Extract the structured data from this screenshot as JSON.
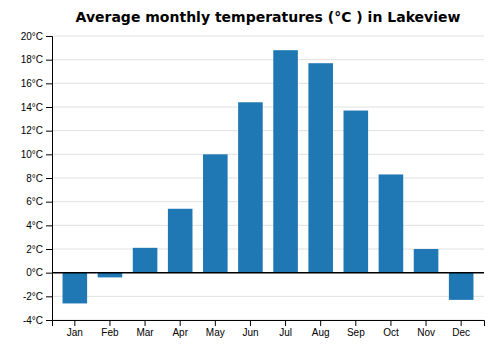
{
  "chart_data": {
    "type": "bar",
    "title": "Average monthly temperatures (°C ) in Lakeview",
    "categories": [
      "Jan",
      "Feb",
      "Mar",
      "Apr",
      "May",
      "Jun",
      "Jul",
      "Aug",
      "Sep",
      "Oct",
      "Nov",
      "Dec"
    ],
    "values": [
      -2.6,
      -0.4,
      2.1,
      5.4,
      10.0,
      14.4,
      18.8,
      17.7,
      13.7,
      8.3,
      2.0,
      -2.3
    ],
    "ylim": [
      -4,
      20
    ],
    "yticks": [
      {
        "value": -4,
        "label": "-4°C"
      },
      {
        "value": -2,
        "label": "-2°C"
      },
      {
        "value": 0,
        "label": "0°C"
      },
      {
        "value": 2,
        "label": "2°C"
      },
      {
        "value": 4,
        "label": "4°C"
      },
      {
        "value": 6,
        "label": "6°C"
      },
      {
        "value": 8,
        "label": "8°C"
      },
      {
        "value": 10,
        "label": "10°C"
      },
      {
        "value": 12,
        "label": "12°C"
      },
      {
        "value": 14,
        "label": "14°C"
      },
      {
        "value": 16,
        "label": "16°C"
      },
      {
        "value": 18,
        "label": "18°C"
      },
      {
        "value": 20,
        "label": "20°C"
      }
    ],
    "grid": true
  }
}
